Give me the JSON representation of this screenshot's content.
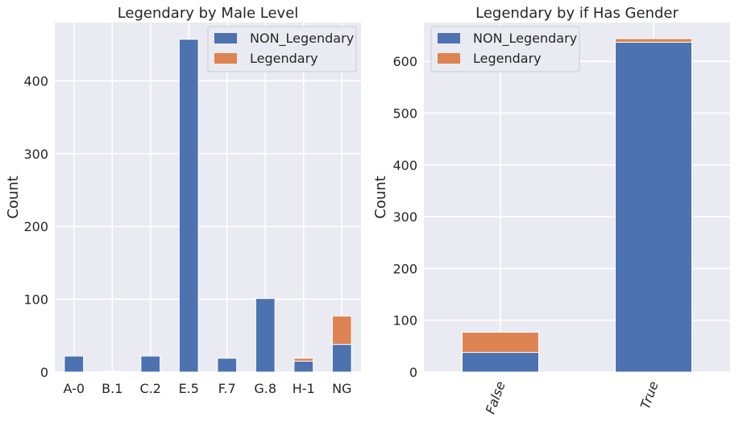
{
  "chart_data": [
    {
      "type": "bar",
      "stacked": true,
      "title": "Legendary by Male Level",
      "xlabel": "",
      "ylabel": "Count",
      "categories": [
        "A-0",
        "B.1",
        "C.2",
        "E.5",
        "F.7",
        "G.8",
        "H-1",
        "NG"
      ],
      "series": [
        {
          "name": "NON_Legendary",
          "color": "#4c72b0",
          "values": [
            22,
            1,
            22,
            457,
            19,
            101,
            15,
            38
          ]
        },
        {
          "name": "Legendary",
          "color": "#dd8452",
          "values": [
            0,
            0,
            0,
            0,
            0,
            0,
            4,
            39
          ]
        }
      ],
      "ylim": [
        0,
        480
      ],
      "yticks": [
        0,
        100,
        200,
        300,
        400
      ],
      "grid": true,
      "legend_position": "top-right",
      "tick_rotation": 0
    },
    {
      "type": "bar",
      "stacked": true,
      "title": "Legendary by if Has Gender",
      "xlabel": "",
      "ylabel": "Count",
      "categories": [
        "False",
        "True"
      ],
      "series": [
        {
          "name": "NON_Legendary",
          "color": "#4c72b0",
          "values": [
            38,
            637
          ]
        },
        {
          "name": "Legendary",
          "color": "#dd8452",
          "values": [
            39,
            7
          ]
        }
      ],
      "ylim": [
        0,
        675
      ],
      "yticks": [
        0,
        100,
        200,
        300,
        400,
        500,
        600
      ],
      "grid": true,
      "legend_position": "top-left",
      "tick_rotation": -70
    }
  ]
}
